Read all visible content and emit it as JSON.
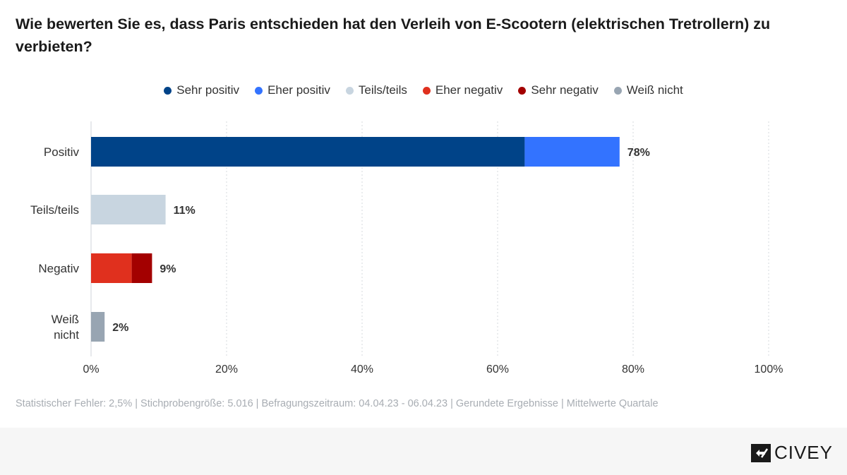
{
  "title": "Wie bewerten Sie es, dass Paris entschieden hat den Verleih von E-Scootern (elektrischen Tretrollern) zu verbieten?",
  "legend": [
    {
      "label": "Sehr positiv",
      "color": "#004388"
    },
    {
      "label": "Eher positiv",
      "color": "#3373ff"
    },
    {
      "label": "Teils/teils",
      "color": "#c8d5e0"
    },
    {
      "label": "Eher negativ",
      "color": "#e0301e"
    },
    {
      "label": "Sehr negativ",
      "color": "#a30000"
    },
    {
      "label": "Weiß nicht",
      "color": "#98a5b2"
    }
  ],
  "chart_data": {
    "type": "bar",
    "orientation": "horizontal",
    "stacked": true,
    "categories": [
      "Positiv",
      "Teils/teils",
      "Negativ",
      "Weiß nicht"
    ],
    "category_lines": [
      [
        "Positiv"
      ],
      [
        "Teils/teils"
      ],
      [
        "Negativ"
      ],
      [
        "Weiß",
        "nicht"
      ]
    ],
    "series": [
      {
        "name": "Sehr positiv",
        "color": "#004388",
        "values": [
          64,
          0,
          0,
          0
        ]
      },
      {
        "name": "Eher positiv",
        "color": "#3373ff",
        "values": [
          14,
          0,
          0,
          0
        ]
      },
      {
        "name": "Teils/teils",
        "color": "#c8d5e0",
        "values": [
          0,
          11,
          0,
          0
        ]
      },
      {
        "name": "Eher negativ",
        "color": "#e0301e",
        "values": [
          0,
          0,
          6,
          0
        ]
      },
      {
        "name": "Sehr negativ",
        "color": "#a30000",
        "values": [
          0,
          0,
          3,
          0
        ]
      },
      {
        "name": "Weiß nicht",
        "color": "#98a5b2",
        "values": [
          0,
          0,
          0,
          2
        ]
      }
    ],
    "totals": [
      78,
      11,
      9,
      2
    ],
    "total_labels": [
      "78%",
      "11%",
      "9%",
      "2%"
    ],
    "xlim": [
      0,
      100
    ],
    "xticks": [
      0,
      20,
      40,
      60,
      80,
      100
    ],
    "xtick_labels": [
      "0%",
      "20%",
      "40%",
      "60%",
      "80%",
      "100%"
    ],
    "grid": true
  },
  "footnote": "Statistischer Fehler: 2,5% | Stichprobengröße: 5.016 | Befragungszeitraum: 04.04.23 - 06.04.23 | Gerundete Ergebnisse | Mittelwerte Quartale",
  "brand": {
    "name": "CIVEY"
  }
}
